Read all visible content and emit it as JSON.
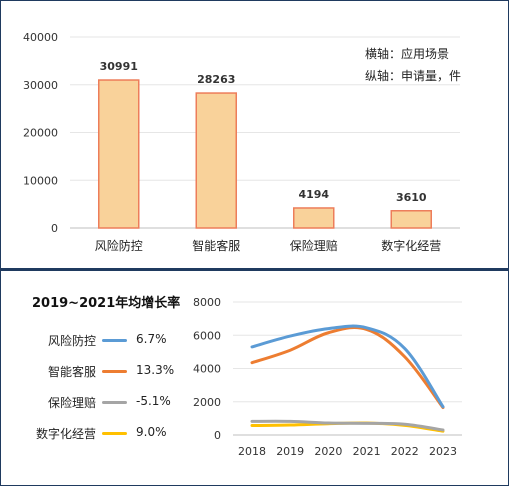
{
  "bar_panel": {
    "note_x": "横轴：应用场景",
    "note_y": "纵轴：申请量，件"
  },
  "line_panel": {
    "title": "2019~2021年均增长率",
    "legend": [
      {
        "name": "风险防控",
        "rate": "6.7%",
        "color": "#5b9bd5"
      },
      {
        "name": "智能客服",
        "rate": "13.3%",
        "color": "#ed7d31"
      },
      {
        "name": "保险理赔",
        "rate": "-5.1%",
        "color": "#a5a5a5"
      },
      {
        "name": "数字化经营",
        "rate": "9.0%",
        "color": "#ffc000"
      }
    ]
  },
  "chart_data": [
    {
      "type": "bar",
      "categories": [
        "风险防控",
        "智能客服",
        "保险理赔",
        "数字化经营"
      ],
      "values": [
        30991,
        28263,
        4194,
        3610
      ],
      "data_labels": [
        "30991",
        "28263",
        "4194",
        "3610"
      ],
      "ylim": [
        0,
        40000
      ],
      "yticks": [
        "0",
        "10000",
        "20000",
        "30000",
        "40000"
      ],
      "grid": true,
      "bar_fill": "#f9d29a",
      "bar_stroke": "#ed7d5a"
    },
    {
      "type": "line",
      "x": [
        "2018",
        "2019",
        "2020",
        "2021",
        "2022",
        "2023"
      ],
      "ylim": [
        0,
        8000
      ],
      "yticks": [
        "0",
        "2000",
        "4000",
        "6000",
        "8000"
      ],
      "series": [
        {
          "name": "风险防控",
          "color": "#5b9bd5",
          "values": [
            5300,
            5950,
            6400,
            6450,
            5200,
            1700
          ]
        },
        {
          "name": "智能客服",
          "color": "#ed7d31",
          "values": [
            4350,
            5100,
            6150,
            6350,
            4700,
            1650
          ]
        },
        {
          "name": "保险理赔",
          "color": "#a5a5a5",
          "values": [
            820,
            820,
            720,
            700,
            650,
            300
          ]
        },
        {
          "name": "数字化经营",
          "color": "#ffc000",
          "values": [
            570,
            600,
            680,
            720,
            580,
            230
          ]
        }
      ]
    }
  ]
}
